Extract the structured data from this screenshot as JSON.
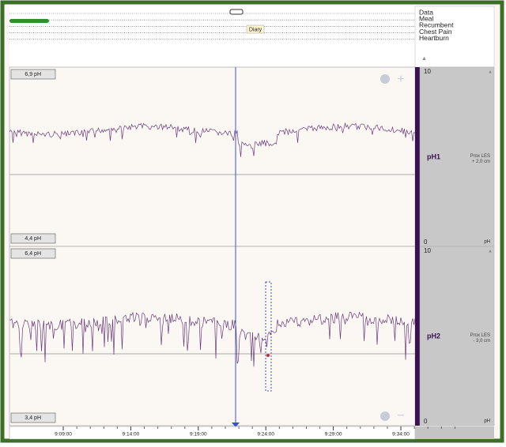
{
  "diary": {
    "rows": [
      "Data",
      "Meal",
      "Recumbent",
      "Chest Pain",
      "Heartburn"
    ],
    "tooltip": "Diary"
  },
  "panels": [
    {
      "top_label": "6,9 pH",
      "bottom_label": "4,4 pH",
      "scale_top": "10",
      "name": "pH1",
      "position": "Prox LES\n+ 2,0 cm",
      "scale_bottom": "0",
      "unit": "pH"
    },
    {
      "top_label": "6,4 pH",
      "bottom_label": "3,4 pH",
      "scale_top": "10",
      "name": "pH2",
      "position": "Prox LES\n- 3,0 cm",
      "scale_bottom": "0",
      "unit": "pH"
    }
  ],
  "time_axis": [
    "9:09:00",
    "9:14:00",
    "9:19:00",
    "9:24:00",
    "9:29:00",
    "9:34:00"
  ]
}
